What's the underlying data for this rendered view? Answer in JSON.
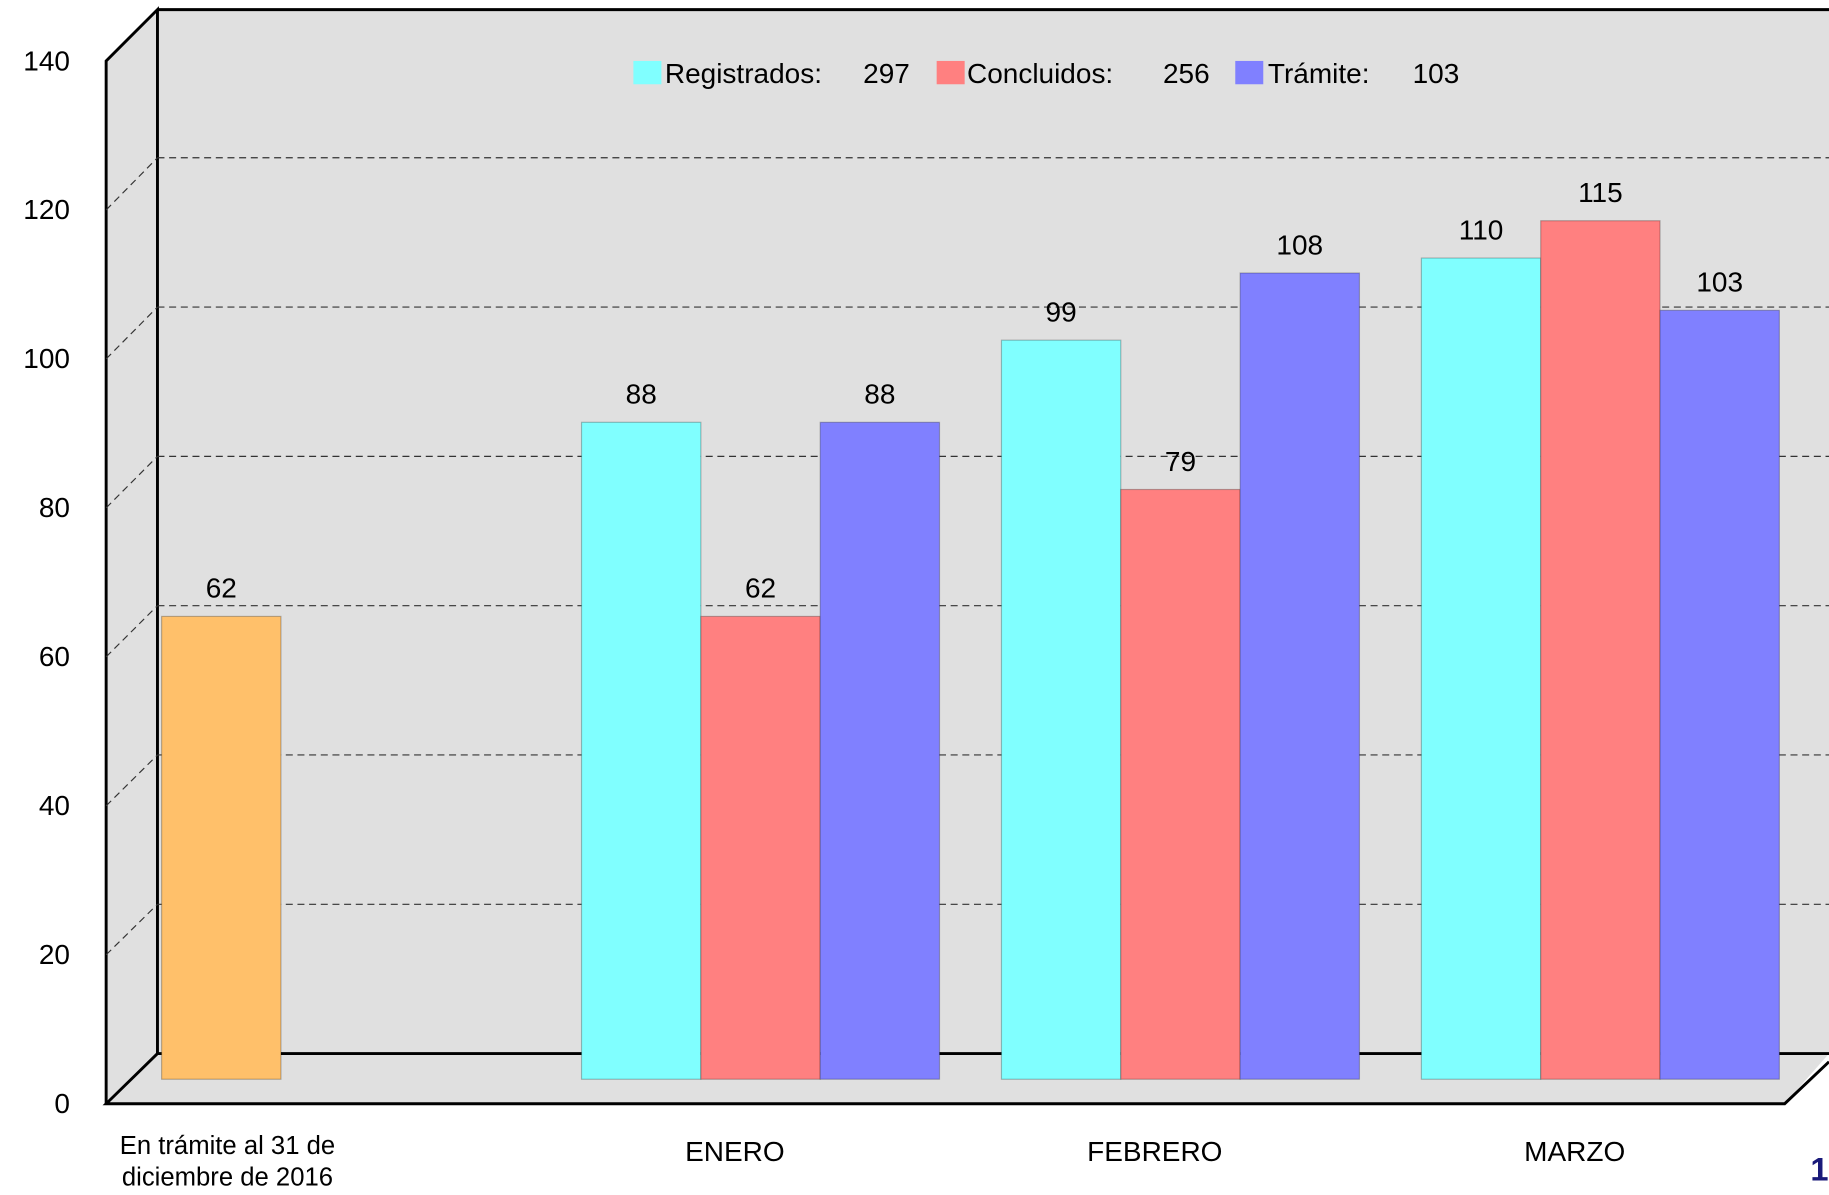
{
  "chart_data": {
    "type": "bar",
    "categories": [
      "En trámite al 31 de diciembre de 2016",
      "ENERO",
      "FEBRERO",
      "MARZO"
    ],
    "series": [
      {
        "color": "#ffc06a",
        "values": [
          62,
          null,
          null,
          null
        ]
      },
      {
        "name": "Registrados:",
        "total": 297,
        "color": "#80ffff",
        "values": [
          null,
          88,
          99,
          110
        ]
      },
      {
        "name": "Concluidos:",
        "total": 256,
        "color": "#ff8080",
        "values": [
          null,
          62,
          79,
          115
        ]
      },
      {
        "name": "Trámite:",
        "total": 103,
        "color": "#8080ff",
        "values": [
          null,
          88,
          108,
          103
        ]
      }
    ],
    "ylim": [
      0,
      140
    ],
    "yticks": [
      0,
      20,
      40,
      60,
      80,
      100,
      120,
      140
    ],
    "grid": true,
    "legend": "top",
    "page_number": "1"
  }
}
